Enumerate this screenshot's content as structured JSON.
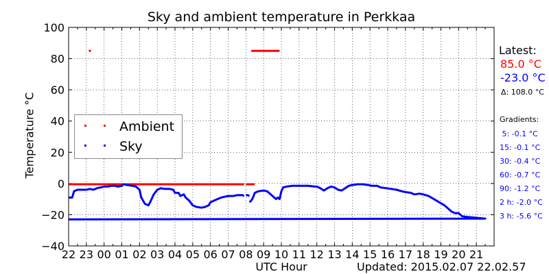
{
  "chart_data": {
    "type": "line",
    "title": "Sky and ambient temperature in Perkkaa",
    "xlabel": "UTC Hour",
    "ylabel": "Temperature °C",
    "ylim": [
      -40,
      100
    ],
    "yticks": [
      "−40",
      "−20",
      "0",
      "20",
      "40",
      "60",
      "80",
      "100"
    ],
    "xticks": [
      "23",
      "00",
      "01",
      "02",
      "03",
      "04",
      "05",
      "06",
      "07",
      "08",
      "09",
      "10",
      "11",
      "12",
      "13",
      "14",
      "15",
      "16",
      "17",
      "18",
      "19",
      "20",
      "21",
      "22"
    ],
    "grid": true,
    "legend_position": "center-left",
    "colors": {
      "Ambient": "#ff0000",
      "Sky": "#0000ff"
    },
    "series": [
      {
        "name": "Ambient",
        "segments": [
          [
            [
              23.2,
              85.0
            ]
          ],
          [
            [
              22.0,
              -0.5
            ],
            [
              22.5,
              -0.5
            ],
            [
              23.0,
              -0.5
            ],
            [
              23.5,
              -0.5
            ],
            [
              0.0,
              -0.5
            ],
            [
              0.5,
              -0.5
            ],
            [
              1.0,
              -0.5
            ],
            [
              1.5,
              -0.5
            ],
            [
              2.0,
              -0.5
            ],
            [
              2.5,
              -0.5
            ],
            [
              3.0,
              -0.5
            ],
            [
              3.5,
              -0.5
            ],
            [
              4.0,
              -0.5
            ],
            [
              4.5,
              -0.5
            ],
            [
              5.0,
              -0.5
            ],
            [
              5.5,
              -0.5
            ],
            [
              6.0,
              -0.5
            ],
            [
              6.5,
              -0.5
            ],
            [
              7.0,
              -0.5
            ],
            [
              7.5,
              -0.5
            ],
            [
              7.9,
              -0.5
            ]
          ],
          [
            [
              8.0,
              -0.5
            ],
            [
              8.5,
              -0.5
            ]
          ],
          [
            [
              8.3,
              85.0
            ],
            [
              8.7,
              85.0
            ],
            [
              9.1,
              85.0
            ],
            [
              9.5,
              85.0
            ],
            [
              9.9,
              85.0
            ]
          ]
        ]
      },
      {
        "name": "Sky",
        "segments": [
          [
            [
              22.0,
              -9
            ],
            [
              22.2,
              -9
            ],
            [
              22.3,
              -5
            ],
            [
              22.5,
              -4
            ],
            [
              22.8,
              -4
            ],
            [
              23.0,
              -4
            ],
            [
              23.2,
              -3.5
            ],
            [
              23.4,
              -4
            ],
            [
              23.6,
              -3
            ],
            [
              23.8,
              -2.5
            ],
            [
              0.0,
              -2
            ],
            [
              0.2,
              -2
            ],
            [
              0.4,
              -1.5
            ],
            [
              0.6,
              -1.5
            ],
            [
              0.8,
              -2
            ],
            [
              1.0,
              -1.5
            ],
            [
              1.1,
              -0.5
            ],
            [
              1.3,
              -1
            ],
            [
              1.6,
              -1.5
            ],
            [
              1.8,
              -2
            ],
            [
              2.0,
              -4
            ],
            [
              2.1,
              -9
            ],
            [
              2.3,
              -13
            ],
            [
              2.5,
              -14
            ],
            [
              2.6,
              -12
            ],
            [
              2.8,
              -7
            ],
            [
              3.0,
              -4
            ],
            [
              3.2,
              -3
            ],
            [
              3.4,
              -3.5
            ],
            [
              3.7,
              -3.5
            ],
            [
              3.9,
              -4
            ],
            [
              4.0,
              -6
            ],
            [
              4.2,
              -6
            ],
            [
              4.3,
              -8
            ],
            [
              4.5,
              -7
            ],
            [
              4.6,
              -9
            ],
            [
              4.8,
              -11
            ],
            [
              5.0,
              -14
            ],
            [
              5.2,
              -15
            ],
            [
              5.5,
              -15.5
            ],
            [
              5.7,
              -15
            ],
            [
              5.9,
              -14
            ],
            [
              6.0,
              -12
            ],
            [
              6.2,
              -11
            ],
            [
              6.4,
              -10
            ],
            [
              6.6,
              -9
            ],
            [
              6.8,
              -8.5
            ],
            [
              7.0,
              -8
            ],
            [
              7.3,
              -8
            ],
            [
              7.5,
              -7.5
            ],
            [
              7.8,
              -7.5
            ],
            [
              7.9,
              -8
            ]
          ],
          [
            [
              8.0,
              -7.5
            ],
            [
              8.1,
              -7.5
            ],
            [
              8.2,
              -8
            ]
          ],
          [
            [
              8.2,
              -12
            ],
            [
              8.3,
              -11
            ],
            [
              8.4,
              -9
            ],
            [
              8.5,
              -6
            ],
            [
              8.7,
              -5
            ],
            [
              9.0,
              -4.5
            ],
            [
              9.2,
              -5
            ],
            [
              9.3,
              -6
            ],
            [
              9.5,
              -8
            ],
            [
              9.7,
              -10
            ],
            [
              9.8,
              -9
            ],
            [
              9.9,
              -10
            ],
            [
              10.0,
              -5
            ],
            [
              10.1,
              -2.5
            ],
            [
              10.3,
              -2
            ],
            [
              10.6,
              -1.5
            ],
            [
              11.0,
              -1.5
            ],
            [
              11.5,
              -1.5
            ],
            [
              11.9,
              -2
            ],
            [
              12.0,
              -2
            ],
            [
              12.2,
              -3
            ],
            [
              12.4,
              -4.5
            ],
            [
              12.6,
              -3
            ],
            [
              12.8,
              -2
            ],
            [
              13.0,
              -2.5
            ],
            [
              13.2,
              -4
            ],
            [
              13.4,
              -4.5
            ],
            [
              13.6,
              -3
            ],
            [
              13.8,
              -1.5
            ],
            [
              14.0,
              -1
            ],
            [
              14.3,
              -0.5
            ],
            [
              14.6,
              -0.5
            ],
            [
              14.9,
              -1
            ],
            [
              15.1,
              -1.5
            ],
            [
              15.4,
              -1.5
            ],
            [
              15.6,
              -2.5
            ],
            [
              15.9,
              -3
            ],
            [
              16.2,
              -3.5
            ],
            [
              16.5,
              -4
            ],
            [
              16.8,
              -5
            ],
            [
              17.0,
              -5.5
            ],
            [
              17.3,
              -6
            ],
            [
              17.5,
              -7
            ],
            [
              17.8,
              -6.5
            ],
            [
              18.0,
              -7
            ],
            [
              18.3,
              -8
            ],
            [
              18.6,
              -10
            ],
            [
              18.9,
              -12
            ],
            [
              19.2,
              -14
            ],
            [
              19.4,
              -16
            ],
            [
              19.6,
              -18
            ],
            [
              19.8,
              -19
            ],
            [
              20.0,
              -19
            ],
            [
              20.2,
              -21
            ],
            [
              20.5,
              -21.5
            ],
            [
              21.0,
              -22
            ],
            [
              21.5,
              -22.5
            ],
            [
              22.0,
              -23
            ]
          ]
        ]
      }
    ]
  },
  "latest": {
    "heading": "Latest:",
    "ambient": "85.0 °C",
    "sky": "-23.0 °C",
    "delta": "Δ: 108.0 °C"
  },
  "gradients": {
    "heading": "Gradients:",
    "items": [
      " 5: -0.1 °C",
      "15: -0.1 °C",
      "30: -0.4 °C",
      "60: -0.7 °C",
      "90: -1.2 °C",
      "2 h: -2.0 °C",
      "3 h: -5.6 °C"
    ]
  },
  "updated": "Updated: 2015.02.07 22.02.57",
  "legend": {
    "ambient": "Ambient",
    "sky": "Sky"
  }
}
